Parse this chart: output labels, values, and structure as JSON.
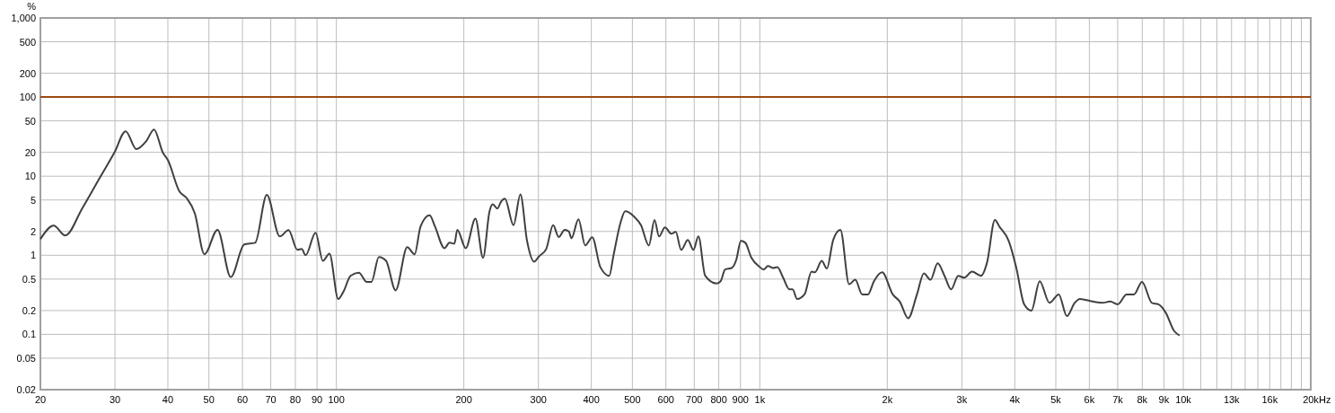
{
  "chart_data": {
    "type": "line",
    "ylabel": "%",
    "log": "xy",
    "grid": true,
    "xlim": [
      20,
      20000
    ],
    "ylim": [
      0.02,
      1000
    ],
    "xticks": [
      20,
      30,
      40,
      50,
      60,
      70,
      80,
      90,
      100,
      200,
      300,
      400,
      500,
      600,
      700,
      800,
      900,
      {
        "value": 1000,
        "label": "1k"
      },
      {
        "value": 2000,
        "label": "2k"
      },
      {
        "value": 3000,
        "label": "3k"
      },
      {
        "value": 4000,
        "label": "4k"
      },
      {
        "value": 5000,
        "label": "5k"
      },
      {
        "value": 6000,
        "label": "6k"
      },
      {
        "value": 7000,
        "label": "7k"
      },
      {
        "value": 8000,
        "label": "8k"
      },
      {
        "value": 9000,
        "label": "9k"
      },
      {
        "value": 10000,
        "label": "10k"
      },
      {
        "value": 11000,
        "label": null
      },
      {
        "value": 12000,
        "label": null
      },
      {
        "value": 13000,
        "label": "13k"
      },
      {
        "value": 14000,
        "label": null
      },
      {
        "value": 15000,
        "label": null
      },
      {
        "value": 16000,
        "label": "16k"
      },
      {
        "value": 17000,
        "label": null
      },
      {
        "value": 18000,
        "label": null
      },
      {
        "value": 19000,
        "label": null
      },
      {
        "value": 20000,
        "label": "20k"
      }
    ],
    "xlabel": "Hz",
    "yticks": [
      0.02,
      0.05,
      0.1,
      0.2,
      0.5,
      1,
      2,
      5,
      10,
      20,
      50,
      100,
      200,
      500,
      {
        "value": 1000,
        "label": "1,000"
      }
    ],
    "ref_lines": [
      {
        "axis": "y",
        "value": 100,
        "color": "#9c4a12"
      }
    ],
    "series": [
      {
        "color": "#404040",
        "x": [
          20,
          21.5,
          22.9,
          25.1,
          27.7,
          29.9,
          31.8,
          33.7,
          35.6,
          37.1,
          38.9,
          40,
          42.6,
          44.3,
          46.3,
          48.8,
          52.4,
          56.3,
          60.6,
          64.3,
          68.5,
          73.5,
          77.1,
          80.9,
          82.8,
          84.6,
          89.3,
          92.9,
          96.3,
          101,
          104,
          108,
          113,
          118,
          121,
          126,
          131,
          138,
          147,
          153,
          158,
          166,
          171,
          180,
          185,
          190,
          193,
          202,
          213,
          222,
          230,
          234,
          240,
          245,
          250,
          262,
          272,
          282,
          293,
          301,
          313,
          325,
          335,
          346,
          354,
          359,
          373,
          387,
          402,
          420,
          441,
          451,
          469,
          481,
          504,
          524,
          547,
          564,
          578,
          597,
          618,
          633,
          652,
          676,
          697,
          716,
          743,
          790,
          808,
          828,
          858,
          880,
          902,
          924,
          955,
          1000,
          1020,
          1045,
          1075,
          1100,
          1135,
          1175,
          1195,
          1225,
          1275,
          1325,
          1350,
          1400,
          1440,
          1490,
          1550,
          1625,
          1680,
          1745,
          1800,
          1860,
          1945,
          2060,
          2140,
          2240,
          2350,
          2440,
          2530,
          2630,
          2730,
          2830,
          2940,
          3040,
          3170,
          3330,
          3440,
          3590,
          3680,
          3870,
          4030,
          4210,
          4380,
          4580,
          4830,
          5080,
          5310,
          5540,
          5700,
          6100,
          6430,
          6720,
          7000,
          7350,
          7650,
          7990,
          8430,
          8730,
          9080,
          9520,
          9800
        ],
        "values": [
          1.6,
          2.37,
          1.78,
          3.9,
          9.8,
          19.8,
          37,
          22,
          28,
          39,
          20,
          16,
          6.4,
          5.3,
          3.4,
          1.03,
          2.1,
          0.53,
          1.37,
          1.44,
          5.8,
          1.73,
          2.08,
          1.17,
          1.2,
          1.0,
          1.92,
          0.85,
          1.05,
          0.28,
          0.35,
          0.55,
          0.6,
          0.46,
          0.46,
          0.95,
          0.85,
          0.36,
          1.27,
          1.03,
          2.3,
          3.2,
          2.3,
          1.23,
          1.44,
          1.4,
          2.1,
          1.23,
          2.9,
          0.93,
          3.6,
          4.4,
          3.9,
          4.8,
          5.2,
          2.4,
          5.9,
          1.52,
          0.83,
          0.97,
          1.2,
          2.4,
          1.7,
          2.1,
          2.0,
          1.64,
          2.85,
          1.33,
          1.69,
          0.71,
          0.55,
          0.98,
          2.6,
          3.6,
          3.1,
          2.4,
          1.33,
          2.8,
          1.73,
          2.25,
          1.87,
          1.97,
          1.17,
          1.56,
          1.17,
          1.73,
          0.55,
          0.44,
          0.47,
          0.66,
          0.69,
          0.88,
          1.52,
          1.44,
          0.93,
          0.71,
          0.66,
          0.73,
          0.69,
          0.71,
          0.52,
          0.37,
          0.37,
          0.28,
          0.32,
          0.62,
          0.61,
          0.85,
          0.68,
          1.56,
          2.1,
          0.43,
          0.49,
          0.32,
          0.32,
          0.47,
          0.61,
          0.32,
          0.26,
          0.16,
          0.32,
          0.59,
          0.49,
          0.79,
          0.55,
          0.37,
          0.55,
          0.52,
          0.62,
          0.55,
          0.81,
          2.8,
          2.3,
          1.52,
          0.71,
          0.24,
          0.2,
          0.47,
          0.25,
          0.32,
          0.17,
          0.25,
          0.28,
          0.26,
          0.25,
          0.26,
          0.24,
          0.32,
          0.32,
          0.46,
          0.25,
          0.24,
          0.19,
          0.11,
          0.097
        ]
      }
    ]
  }
}
